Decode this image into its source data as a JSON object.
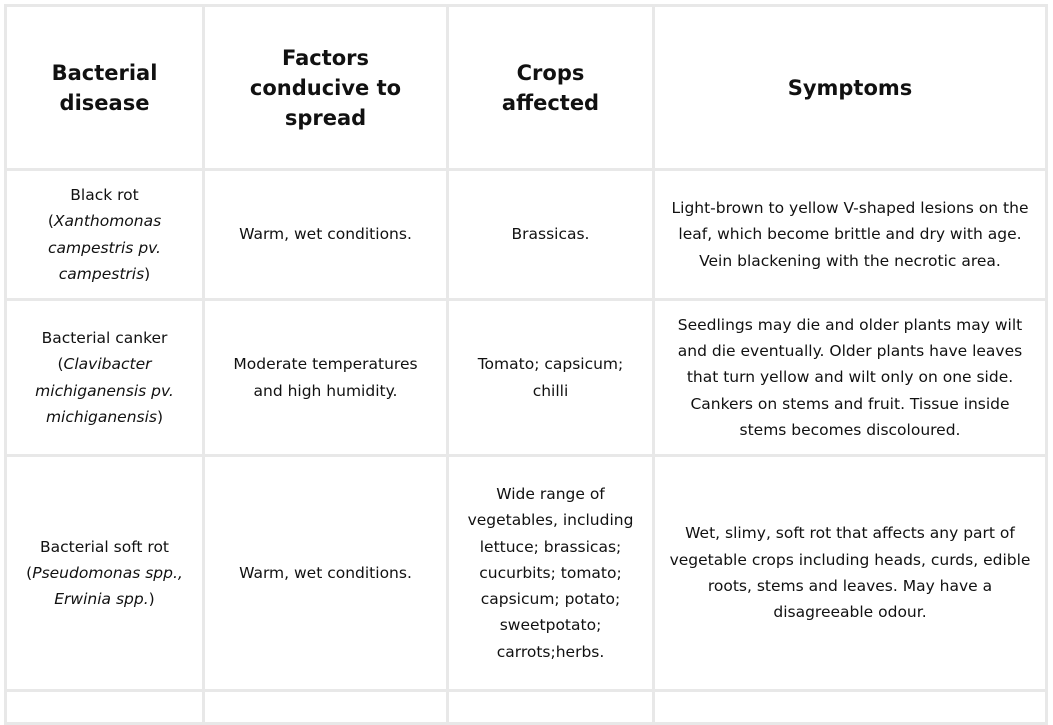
{
  "headers": [
    "Bacterial disease",
    "Factors conducive to spread",
    "Crops affected",
    "Symptoms"
  ],
  "rows": [
    {
      "disease": "Black rot",
      "scientific": "Xanthomonas campestris pv. campestris",
      "factors": "Warm, wet conditions.",
      "crops": "Brassicas.",
      "symptoms": "Light-brown to yellow V-shaped lesions on the leaf, which become brittle and dry with age. Vein blackening with the necrotic area."
    },
    {
      "disease": "Bacterial canker",
      "scientific": "Clavibacter michiganensis pv. michiganensis",
      "factors": "Moderate temperatures and high humidity.",
      "crops": "Tomato; capsicum; chilli",
      "symptoms": "Seedlings may die and older plants may wilt and die eventually. Older plants have leaves that turn yellow and wilt only on one side. Cankers on stems and fruit. Tissue inside stems becomes discoloured."
    },
    {
      "disease": "Bacterial soft rot",
      "scientific": "Pseudomonas spp., Erwinia spp.",
      "factors": "Warm, wet conditions.",
      "crops": "Wide range of vegetables, including lettuce; brassicas; cucurbits; tomato; capsicum; potato; sweetpotato; carrots;herbs.",
      "symptoms": "Wet, slimy, soft rot that affects any part of vegetable crops including heads, curds, edible roots, stems and leaves. May have a disagreeable odour."
    }
  ]
}
